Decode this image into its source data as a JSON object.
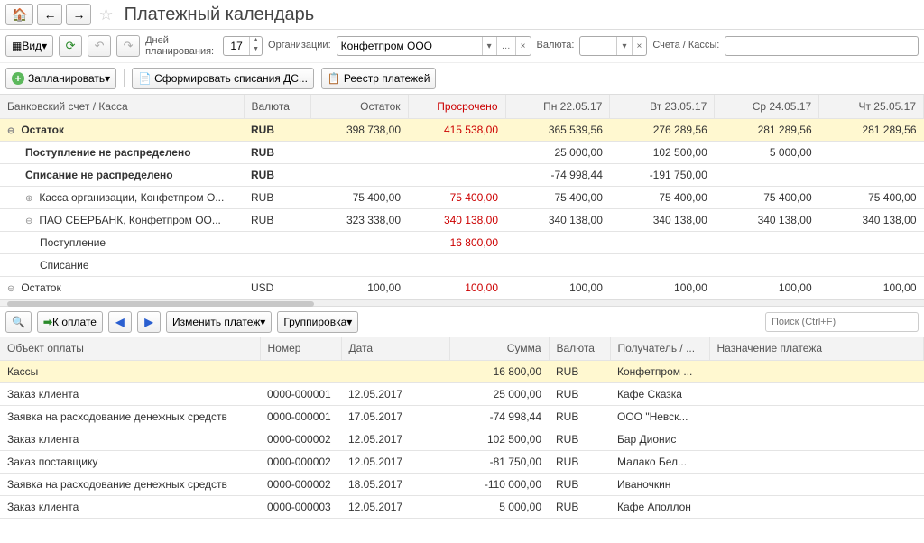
{
  "header": {
    "title": "Платежный календарь"
  },
  "params": {
    "days_label": "Дней\nпланирования:",
    "days_value": "17",
    "org_label": "Организации:",
    "org_value": "Конфетпром ООО",
    "currency_label": "Валюта:",
    "currency_value": "",
    "account_label": "Счета / Кассы:"
  },
  "view_btn": "Вид",
  "actions": {
    "plan": "Запланировать",
    "form": "Сформировать списания ДС...",
    "registry": "Реестр платежей"
  },
  "table1": {
    "cols": [
      "Банковский счет / Касса",
      "Валюта",
      "Остаток",
      "Просрочено",
      "Пн 22.05.17",
      "Вт 23.05.17",
      "Ср 24.05.17",
      "Чт 25.05.17"
    ],
    "rows": [
      {
        "hl": true,
        "bold": true,
        "exp": "⊖",
        "indent": 0,
        "label": "Остаток",
        "cur": "RUB",
        "vals": [
          "398 738,00",
          "415 538,00",
          "365 539,56",
          "276 289,56",
          "281 289,56",
          "281 289,56"
        ]
      },
      {
        "bold": true,
        "indent": 1,
        "label": "Поступление не распределено",
        "cur": "RUB",
        "vals": [
          "",
          "",
          "25 000,00",
          "102 500,00",
          "5 000,00",
          ""
        ]
      },
      {
        "bold": true,
        "indent": 1,
        "label": "Списание не распределено",
        "cur": "RUB",
        "vals": [
          "",
          "",
          "-74 998,44",
          "-191 750,00",
          "",
          ""
        ]
      },
      {
        "exp": "⊕",
        "indent": 1,
        "label": "Касса организации, Конфетпром О...",
        "cur": "RUB",
        "vals": [
          "75 400,00",
          "75 400,00",
          "75 400,00",
          "75 400,00",
          "75 400,00",
          "75 400,00"
        ]
      },
      {
        "exp": "⊖",
        "indent": 1,
        "label": "ПАО СБЕРБАНК, Конфетпром ОО...",
        "cur": "RUB",
        "vals": [
          "323 338,00",
          "340 138,00",
          "340 138,00",
          "340 138,00",
          "340 138,00",
          "340 138,00"
        ]
      },
      {
        "indent": 2,
        "label": "Поступление",
        "cur": "",
        "vals": [
          "",
          "16 800,00",
          "",
          "",
          "",
          ""
        ]
      },
      {
        "indent": 2,
        "label": "Списание",
        "cur": "",
        "vals": [
          "",
          "",
          "",
          "",
          "",
          ""
        ]
      },
      {
        "exp": "⊖",
        "indent": 0,
        "label": "Остаток",
        "cur": "USD",
        "vals": [
          "100,00",
          "100,00",
          "100,00",
          "100,00",
          "100,00",
          "100,00"
        ]
      }
    ],
    "red_col": 1,
    "colors": {
      "hl": "#fff8d0",
      "red": "#cc0000"
    }
  },
  "toolbar4": {
    "pay": "К оплате",
    "edit": "Изменить платеж",
    "group": "Группировка",
    "search_ph": "Поиск (Ctrl+F)"
  },
  "table2": {
    "cols": [
      "Объект оплаты",
      "Номер",
      "Дата",
      "Сумма",
      "Валюта",
      "Получатель / ...",
      "Назначение платежа"
    ],
    "rows": [
      {
        "hl": true,
        "obj": "Кассы",
        "num": "",
        "date": "",
        "sum": "16 800,00",
        "cur": "RUB",
        "rec": "Конфетпром ...",
        "purp": ""
      },
      {
        "obj": "Заказ клиента",
        "num": "0000-000001",
        "date": "12.05.2017",
        "sum": "25 000,00",
        "cur": "RUB",
        "rec": "Кафе Сказка",
        "purp": ""
      },
      {
        "obj": "Заявка на расходование денежных средств",
        "num": "0000-000001",
        "date": "17.05.2017",
        "sum": "-74 998,44",
        "cur": "RUB",
        "rec": "ООО \"Невск...",
        "purp": ""
      },
      {
        "obj": "Заказ клиента",
        "num": "0000-000002",
        "date": "12.05.2017",
        "sum": "102 500,00",
        "cur": "RUB",
        "rec": "Бар Дионис",
        "purp": ""
      },
      {
        "obj": "Заказ поставщику",
        "num": "0000-000002",
        "date": "12.05.2017",
        "sum": "-81 750,00",
        "cur": "RUB",
        "rec": "Малако Бел...",
        "purp": ""
      },
      {
        "obj": "Заявка на расходование денежных средств",
        "num": "0000-000002",
        "date": "18.05.2017",
        "sum": "-110 000,00",
        "cur": "RUB",
        "rec": "Иваночкин",
        "purp": ""
      },
      {
        "obj": "Заказ клиента",
        "num": "0000-000003",
        "date": "12.05.2017",
        "sum": "5 000,00",
        "cur": "RUB",
        "rec": "Кафе Аполлон",
        "purp": ""
      }
    ]
  }
}
